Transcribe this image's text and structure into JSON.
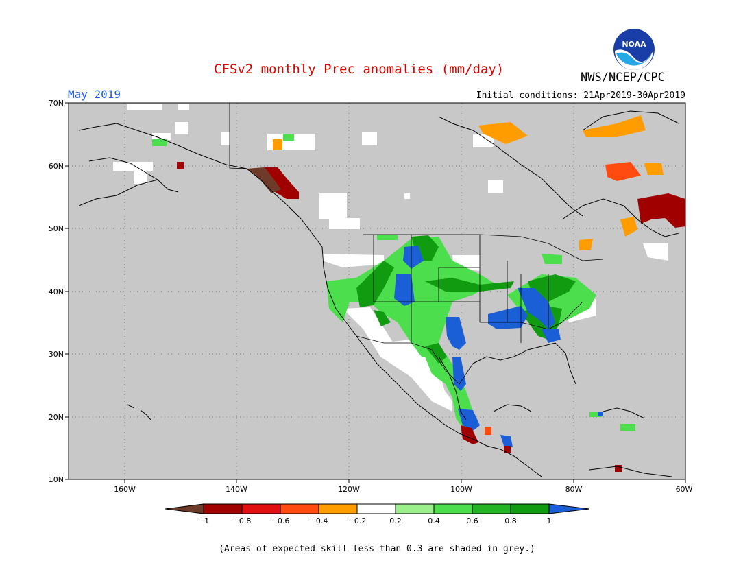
{
  "header": {
    "title": "CFSv2 monthly Prec anomalies (mm/day)",
    "agency": "NWS/NCEP/CPC",
    "logo_text": "NOAA",
    "month": "May 2019",
    "initial_conditions": "Initial conditions: 21Apr2019-30Apr2019"
  },
  "map": {
    "lat_labels": [
      "70N",
      "60N",
      "50N",
      "40N",
      "30N",
      "20N",
      "10N"
    ],
    "lon_labels": [
      "160W",
      "140W",
      "120W",
      "100W",
      "80W",
      "60W"
    ],
    "background_color": "#c8c8c8"
  },
  "colorbar": {
    "labels": [
      "−1",
      "−0.8",
      "−0.6",
      "−0.4",
      "−0.2",
      "0.2",
      "0.4",
      "0.6",
      "0.8",
      "1"
    ],
    "colors": [
      "#6e3a2a",
      "#a00000",
      "#e01010",
      "#ff4a10",
      "#ff9d00",
      "#ffffff",
      "#9cf08c",
      "#4cde4c",
      "#22b422",
      "#109b10",
      "#1b5fd6"
    ]
  },
  "footnote": "(Areas of expected skill less than 0.3 are shaded in grey.)"
}
